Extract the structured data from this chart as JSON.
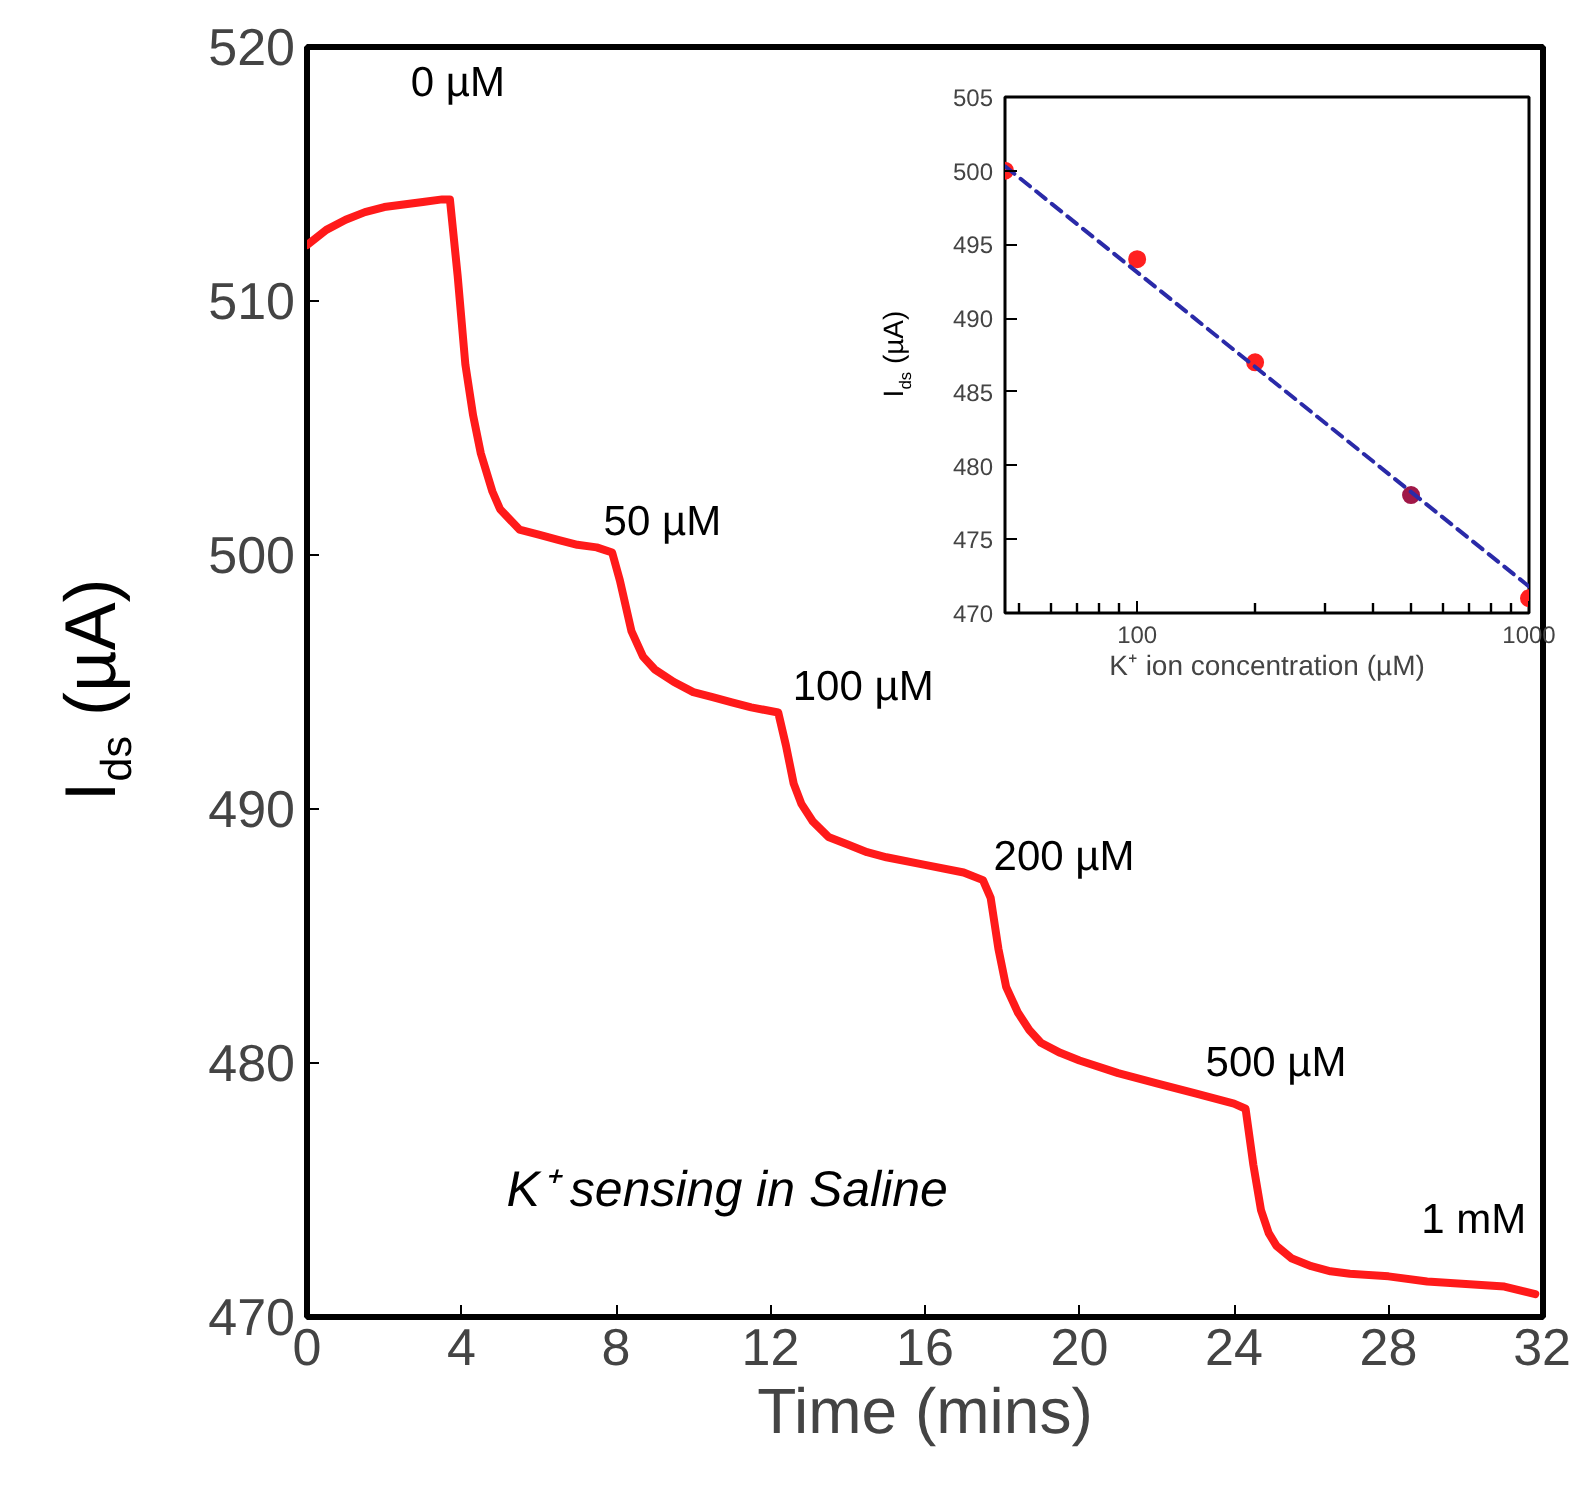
{
  "chart_data": [
    {
      "type": "line",
      "xlabel": "Time (mins)",
      "ylabel": "I$_{ds}$ (µA)",
      "xlim": [
        0,
        32
      ],
      "ylim": [
        470,
        520
      ],
      "xticks": [
        0,
        4,
        8,
        12,
        16,
        20,
        24,
        28,
        32
      ],
      "yticks": [
        470,
        480,
        490,
        500,
        510,
        520
      ],
      "grid": false,
      "line_style": "solid",
      "series": [
        {
          "color": "#ff1a1a",
          "x": [
            0,
            0.5,
            1,
            1.5,
            2,
            2.5,
            3,
            3.5,
            3.7,
            3.9,
            4.1,
            4.3,
            4.5,
            4.8,
            5,
            5.5,
            6,
            6.5,
            7,
            7.5,
            7.9,
            8.1,
            8.4,
            8.7,
            9,
            9.5,
            10,
            10.5,
            11,
            11.5,
            12.2,
            12.4,
            12.6,
            12.8,
            13.1,
            13.5,
            14,
            14.5,
            15,
            16,
            17,
            17.5,
            17.7,
            17.9,
            18.1,
            18.4,
            18.7,
            19,
            19.5,
            20,
            21,
            22,
            23,
            24,
            24.3,
            24.5,
            24.7,
            24.9,
            25.1,
            25.5,
            26,
            26.5,
            27,
            28,
            29,
            30,
            31,
            31.8
          ],
          "values": [
            512.2,
            512.8,
            513.2,
            513.5,
            513.7,
            513.8,
            513.9,
            514,
            514,
            511,
            507.5,
            505.5,
            504,
            502.5,
            501.8,
            501,
            500.8,
            500.6,
            500.4,
            500.3,
            500.1,
            499,
            497,
            496,
            495.5,
            495,
            494.6,
            494.4,
            494.2,
            494,
            493.8,
            492.5,
            491,
            490.2,
            489.5,
            488.9,
            488.6,
            488.3,
            488.1,
            487.8,
            487.5,
            487.2,
            486.5,
            484.5,
            483,
            482,
            481.3,
            480.8,
            480.4,
            480.1,
            479.6,
            479.2,
            478.8,
            478.4,
            478.2,
            476,
            474.2,
            473.3,
            472.8,
            472.3,
            472,
            471.8,
            471.7,
            471.6,
            471.4,
            471.3,
            471.2,
            470.9
          ]
        }
      ],
      "annotations": [
        "0 µM",
        "50 µM",
        "100 µM",
        "200 µM",
        "500 µM",
        "1 mM",
        "K⁺ sensing in Saline"
      ]
    },
    {
      "type": "scatter",
      "xlabel": "K⁺ ion concentration (µM)",
      "ylabel": "I$_{ds}$ (µA)",
      "log": "x",
      "xlim": [
        46,
        1000
      ],
      "ylim": [
        470,
        505
      ],
      "xticks": [
        {
          "value": 50,
          "label": null
        },
        {
          "value": 60,
          "label": null
        },
        {
          "value": 70,
          "label": null
        },
        {
          "value": 80,
          "label": null
        },
        {
          "value": 90,
          "label": null
        },
        100,
        {
          "value": 200,
          "label": null
        },
        {
          "value": 300,
          "label": null
        },
        {
          "value": 400,
          "label": null
        },
        {
          "value": 500,
          "label": null
        },
        {
          "value": 600,
          "label": null
        },
        {
          "value": 700,
          "label": null
        },
        {
          "value": 800,
          "label": null
        },
        {
          "value": 900,
          "label": null
        },
        1000
      ],
      "yticks": [
        470,
        475,
        480,
        485,
        490,
        495,
        500,
        505
      ],
      "grid": false,
      "marker": "circle",
      "series": [
        {
          "type": "scatter",
          "x": [
            46,
            100,
            200,
            500,
            1000
          ],
          "values": [
            500,
            494,
            487,
            478,
            471
          ],
          "colors": [
            "#ff2020",
            "#ff2020",
            "#ff2020",
            "#a01848",
            "#ff2020"
          ]
        },
        {
          "type": "line",
          "line_style": "dashed",
          "marker": "none",
          "color": "#2a2aa8",
          "x": [
            46,
            1000
          ],
          "values": [
            500.3,
            471.8
          ]
        }
      ]
    }
  ]
}
